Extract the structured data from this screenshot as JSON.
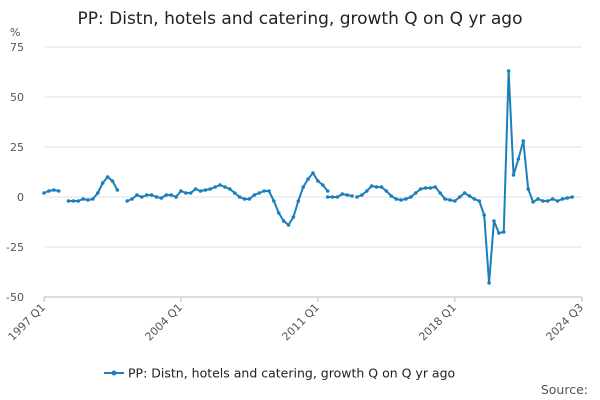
{
  "chart_data": {
    "type": "line",
    "title": "PP: Distn, hotels and catering, growth Q on Q yr ago",
    "unit_label": "%",
    "xlabel": "",
    "ylabel": "",
    "ylim": [
      -50,
      75
    ],
    "yticks": [
      75,
      50,
      25,
      0,
      -25,
      -50
    ],
    "xtick_labels": [
      "1997 Q1",
      "2004 Q1",
      "2011 Q1",
      "2018 Q1",
      "2024 Q3"
    ],
    "legend_position": "bottom",
    "grid": true,
    "color": "#1a7fbd",
    "source_label": "Source:",
    "series": [
      {
        "name": "PP: Distn, hotels and catering, growth Q on Q yr ago",
        "segments": [
          {
            "start": "1997 Q1",
            "values": [
              2,
              3,
              3.5,
              3
            ]
          },
          {
            "start": "1998 Q2",
            "values": [
              -2,
              -2,
              -2,
              -1,
              -1.5,
              -1,
              2,
              7,
              10,
              8,
              3.5
            ]
          },
          {
            "start": "2001 Q2",
            "values": [
              -2,
              -1,
              1,
              0,
              1,
              1,
              0,
              -0.5,
              1,
              1,
              0,
              3,
              2,
              2,
              4,
              3,
              3.5,
              4,
              5,
              6,
              5,
              4,
              2,
              0,
              -1,
              -1,
              1,
              2,
              3,
              3,
              -2,
              -8,
              -12,
              -14,
              -10,
              -2,
              5,
              9,
              12,
              8,
              6,
              3
            ]
          },
          {
            "start": "2011 Q3",
            "values": [
              0,
              0,
              0,
              1.5,
              1,
              0.5
            ]
          },
          {
            "start": "2013 Q1",
            "values": [
              0,
              1,
              3,
              5.5,
              5,
              5,
              3,
              0.5,
              -1,
              -1.5,
              -1,
              0,
              2,
              4,
              4.5,
              4.5,
              5,
              2,
              -1,
              -1.5,
              -2,
              0,
              2,
              0.5,
              -1,
              -2,
              -9,
              -43,
              -12,
              -18,
              -17.5,
              63,
              11,
              19,
              28,
              4,
              -2.5,
              -1,
              -2,
              -2,
              -1,
              -2,
              -1,
              -0.5,
              0
            ]
          }
        ]
      }
    ]
  }
}
